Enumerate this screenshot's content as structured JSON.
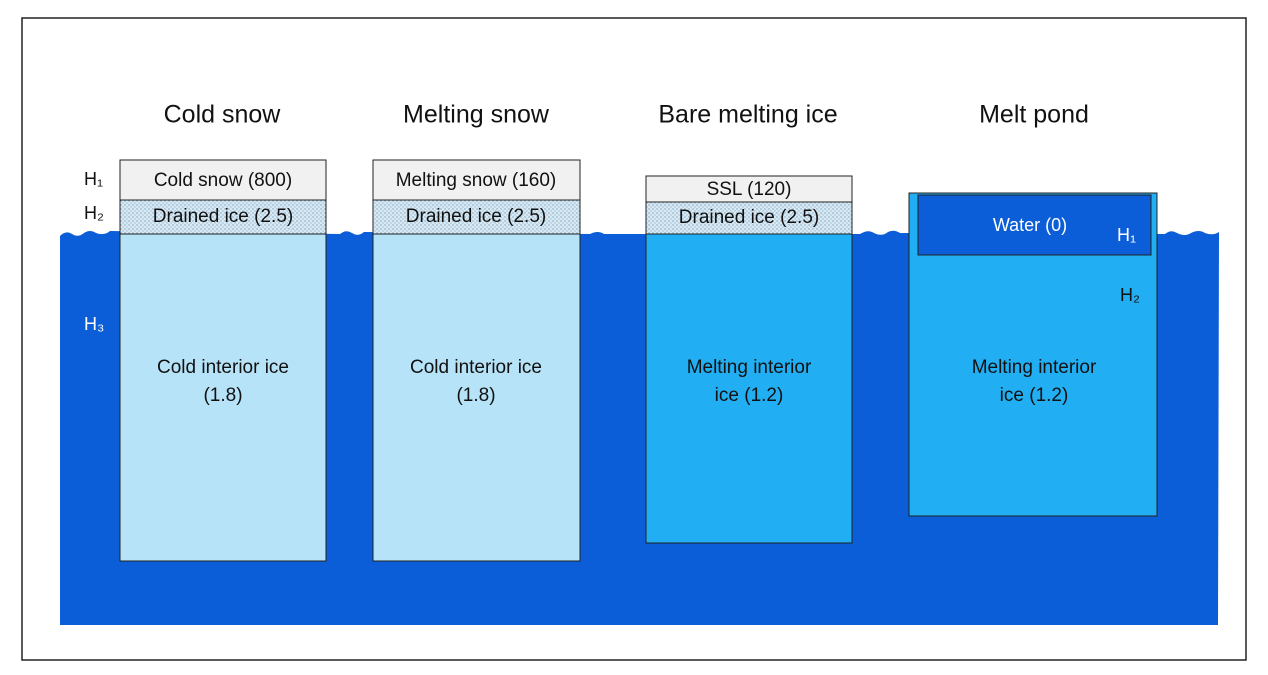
{
  "columns": [
    {
      "title": "Cold snow",
      "layers": [
        "Cold snow (800)",
        "Drained ice (2.5)"
      ],
      "interior": [
        "Cold interior ice",
        "(1.8)"
      ]
    },
    {
      "title": "Melting snow",
      "layers": [
        "Melting snow (160)",
        "Drained ice (2.5)"
      ],
      "interior": [
        "Cold interior ice",
        "(1.8)"
      ]
    },
    {
      "title": "Bare melting ice",
      "layers": [
        "SSL (120)",
        "Drained ice (2.5)"
      ],
      "interior": [
        "Melting interior",
        "ice (1.2)"
      ]
    },
    {
      "title": "Melt pond",
      "layers": [
        "Water (0)"
      ],
      "interior": [
        "Melting interior",
        "ice (1.2)"
      ]
    }
  ],
  "left_labels": [
    "H₁",
    "H₂",
    "H₃"
  ],
  "pond_labels": [
    "H₁",
    "H₂"
  ]
}
